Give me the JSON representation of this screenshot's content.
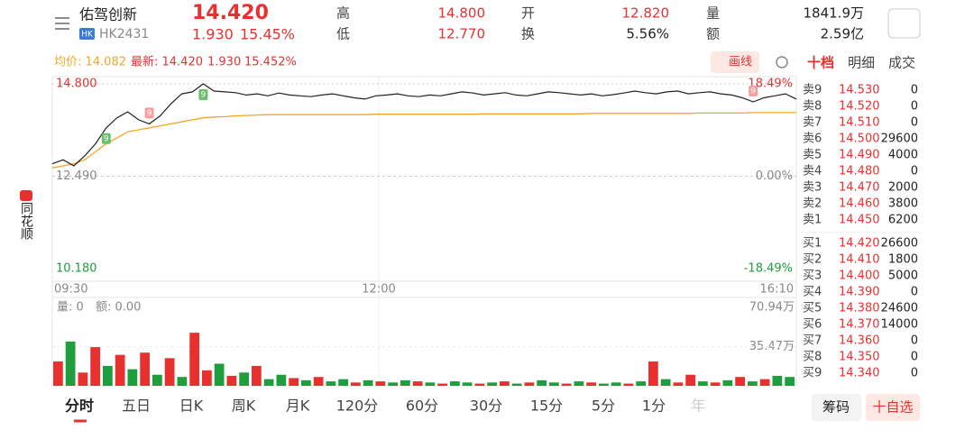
{
  "header": {
    "name": "佑驾创新",
    "market": "HK",
    "code": "HK2431",
    "price": "14.420",
    "change": "1.930",
    "change_pct": "15.45%",
    "stats": [
      [
        "高",
        "14.800"
      ],
      [
        "低",
        "12.770"
      ],
      [
        "开",
        "12.820"
      ],
      [
        "换",
        "5.56%"
      ],
      [
        "量",
        "1841.9万"
      ],
      [
        "额",
        "2.59亿"
      ]
    ]
  },
  "info_bar": {
    "avg": "均价: 14.082",
    "latest": "最新: 14.420",
    "change": "1.930",
    "change_pct": "15.452%",
    "draw_button": "画线"
  },
  "side_tabs": [
    "十档",
    "明细",
    "成交"
  ],
  "brand": "同花顺",
  "price_chart": {
    "type": "line",
    "ylim": [
      10.18,
      14.8
    ],
    "yticks": [
      {
        "value": 14.8,
        "label": "14.800"
      },
      {
        "value": 12.49,
        "label": "12.490"
      },
      {
        "value": 10.18,
        "label": "10.180"
      }
    ],
    "pct_ticks": [
      "18.49%",
      "0.00%",
      "-18.49%"
    ],
    "x_labels": [
      "09:30",
      "12:00",
      "16:10"
    ],
    "markers": [
      "9",
      "9",
      "9",
      "9"
    ],
    "price": {
      "color": "#222222",
      "values": [
        12.8,
        12.9,
        12.75,
        13.0,
        13.3,
        13.7,
        13.95,
        14.1,
        13.9,
        13.8,
        14.0,
        14.3,
        14.55,
        14.6,
        14.8,
        14.62,
        14.6,
        14.58,
        14.52,
        14.55,
        14.5,
        14.57,
        14.52,
        14.5,
        14.48,
        14.52,
        14.55,
        14.5,
        14.45,
        14.42,
        14.5,
        14.52,
        14.55,
        14.5,
        14.48,
        14.52,
        14.5,
        14.55,
        14.6,
        14.57,
        14.52,
        14.55,
        14.58,
        14.52,
        14.5,
        14.55,
        14.6,
        14.58,
        14.55,
        14.52,
        14.55,
        14.5,
        14.53,
        14.57,
        14.62,
        14.58,
        14.55,
        14.6,
        14.62,
        14.55,
        14.58,
        14.6,
        14.55,
        14.52,
        14.45,
        14.35,
        14.45,
        14.5,
        14.55,
        14.42
      ]
    },
    "avg": {
      "color": "#f5a623",
      "values": [
        12.7,
        12.75,
        12.8,
        12.9,
        13.1,
        13.3,
        13.45,
        13.6,
        13.65,
        13.7,
        13.75,
        13.8,
        13.85,
        13.9,
        13.95,
        13.97,
        13.98,
        14.0,
        14.01,
        14.02,
        14.03,
        14.03,
        14.03,
        14.03,
        14.03,
        14.03,
        14.03,
        14.03,
        14.03,
        14.03,
        14.04,
        14.04,
        14.04,
        14.04,
        14.04,
        14.04,
        14.04,
        14.04,
        14.04,
        14.04,
        14.05,
        14.05,
        14.05,
        14.05,
        14.05,
        14.05,
        14.05,
        14.05,
        14.05,
        14.05,
        14.06,
        14.06,
        14.06,
        14.06,
        14.06,
        14.06,
        14.06,
        14.06,
        14.06,
        14.06,
        14.07,
        14.07,
        14.07,
        14.07,
        14.07,
        14.08,
        14.08,
        14.08,
        14.08,
        14.082
      ]
    }
  },
  "volume_chart": {
    "type": "bar",
    "ylim": [
      0,
      70.94
    ],
    "yticks": [
      {
        "value": 70.94,
        "label": "70.94万"
      },
      {
        "value": 35.47,
        "label": "35.47万"
      }
    ],
    "vol_label": "量: 0",
    "amount_label": "额: 0.00",
    "values": [
      22,
      40,
      12,
      35,
      18,
      28,
      15,
      30,
      10,
      25,
      8,
      48,
      14,
      20,
      9,
      12,
      18,
      6,
      10,
      7,
      5,
      8,
      4,
      6,
      3,
      5,
      4,
      3,
      5,
      4,
      3,
      2,
      4,
      3,
      2,
      3,
      4,
      2,
      3,
      5,
      3,
      2,
      4,
      3,
      2,
      3,
      2,
      4,
      22,
      6,
      3,
      10,
      4,
      3,
      5,
      8,
      4,
      6,
      9,
      8
    ],
    "colors": [
      "#e8312f",
      "#1e9e3c",
      "#e8312f",
      "#e8312f",
      "#1e9e3c",
      "#e8312f",
      "#1e9e3c",
      "#e8312f",
      "#1e9e3c",
      "#e8312f",
      "#1e9e3c",
      "#e8312f",
      "#e8312f",
      "#1e9e3c",
      "#e8312f",
      "#1e9e3c",
      "#e8312f",
      "#1e9e3c",
      "#1e9e3c",
      "#e8312f",
      "#1e9e3c",
      "#e8312f",
      "#1e9e3c",
      "#1e9e3c",
      "#e8312f",
      "#1e9e3c",
      "#e8312f",
      "#1e9e3c",
      "#1e9e3c",
      "#e8312f",
      "#1e9e3c",
      "#e8312f",
      "#1e9e3c",
      "#1e9e3c",
      "#e8312f",
      "#1e9e3c",
      "#e8312f",
      "#1e9e3c",
      "#e8312f",
      "#1e9e3c",
      "#1e9e3c",
      "#e8312f",
      "#1e9e3c",
      "#e8312f",
      "#1e9e3c",
      "#1e9e3c",
      "#e8312f",
      "#1e9e3c",
      "#e8312f",
      "#1e9e3c",
      "#e8312f",
      "#e8312f",
      "#1e9e3c",
      "#e8312f",
      "#1e9e3c",
      "#e8312f",
      "#1e9e3c",
      "#e8312f",
      "#1e9e3c",
      "#1e9e3c"
    ]
  },
  "order_book": {
    "sell": [
      [
        "卖9",
        "14.530",
        "0"
      ],
      [
        "卖8",
        "14.520",
        "0"
      ],
      [
        "卖7",
        "14.510",
        "0"
      ],
      [
        "卖6",
        "14.500",
        "29600"
      ],
      [
        "卖5",
        "14.490",
        "4000"
      ],
      [
        "卖4",
        "14.480",
        "0"
      ],
      [
        "卖3",
        "14.470",
        "2000"
      ],
      [
        "卖2",
        "14.460",
        "3800"
      ],
      [
        "卖1",
        "14.450",
        "6200"
      ]
    ],
    "buy": [
      [
        "买1",
        "14.420",
        "26600"
      ],
      [
        "买2",
        "14.410",
        "1800"
      ],
      [
        "买3",
        "14.400",
        "5000"
      ],
      [
        "买4",
        "14.390",
        "0"
      ],
      [
        "买5",
        "14.380",
        "24600"
      ],
      [
        "买6",
        "14.370",
        "14000"
      ],
      [
        "买7",
        "14.360",
        "0"
      ],
      [
        "买8",
        "14.350",
        "0"
      ],
      [
        "买9",
        "14.340",
        "0"
      ]
    ]
  },
  "period_tabs": [
    "分时",
    "五日",
    "日K",
    "周K",
    "月K",
    "120分",
    "60分",
    "30分",
    "15分",
    "5分",
    "1分",
    "年"
  ],
  "buttons": [
    "筹码",
    "十自选"
  ]
}
